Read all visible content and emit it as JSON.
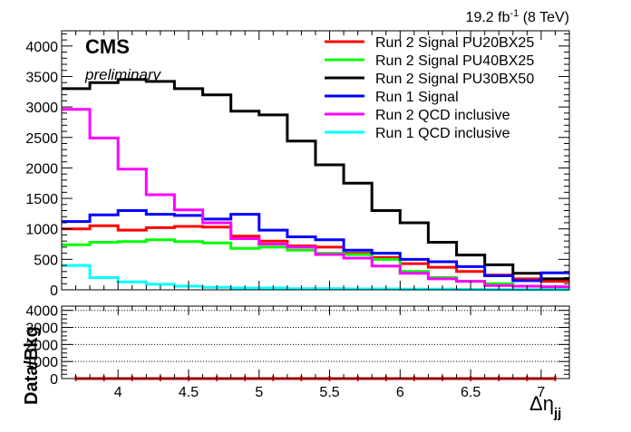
{
  "header": {
    "lumi_value": "19.2 fb",
    "lumi_exponent": "-1",
    "lumi_energy": "(8 TeV)"
  },
  "labels": {
    "experiment": "CMS",
    "status": "preliminary"
  },
  "chart_data": [
    {
      "type": "line",
      "style": "step-histogram",
      "panel": "main",
      "xlabel": "Δη",
      "xlabel_subscript": "jj",
      "ylabel": "",
      "x_edges": [
        3.6,
        3.8,
        4.0,
        4.2,
        4.4,
        4.6,
        4.8,
        5.0,
        5.2,
        5.4,
        5.6,
        5.8,
        6.0,
        6.2,
        6.4,
        6.6,
        6.8,
        7.0,
        7.2
      ],
      "xlim": [
        3.6,
        7.2
      ],
      "ylim": [
        0,
        4250
      ],
      "x_ticks": [
        4,
        4.5,
        5,
        5.5,
        6,
        6.5,
        7
      ],
      "x_tick_labels": [
        "4",
        "4.5",
        "5",
        "5.5",
        "6",
        "6.5",
        "7"
      ],
      "y_ticks": [
        0,
        500,
        1000,
        1500,
        2000,
        2500,
        3000,
        3500,
        4000
      ],
      "y_tick_labels": [
        "0",
        "500",
        "1000",
        "1500",
        "2000",
        "2500",
        "3000",
        "3500",
        "4000"
      ],
      "grid": false,
      "legend_position": "top-right",
      "series": [
        {
          "name": "Run 2 Signal PU20BX25",
          "color": "#ff0000",
          "values": [
            1000,
            1050,
            980,
            1020,
            1040,
            1030,
            880,
            800,
            720,
            700,
            600,
            530,
            430,
            370,
            300,
            240,
            180,
            140
          ]
        },
        {
          "name": "Run 2 Signal PU40BX25",
          "color": "#00ff00",
          "values": [
            740,
            780,
            790,
            820,
            790,
            770,
            680,
            700,
            650,
            600,
            580,
            500,
            300,
            200,
            140,
            100,
            60,
            40
          ]
        },
        {
          "name": "Run 2 Signal PU30BX50",
          "color": "#000000",
          "values": [
            3300,
            3400,
            3450,
            3420,
            3300,
            3200,
            2930,
            2870,
            2440,
            2050,
            1750,
            1300,
            1100,
            780,
            570,
            410,
            270,
            180
          ]
        },
        {
          "name": "Run 1 Signal",
          "color": "#0000ff",
          "values": [
            1120,
            1230,
            1300,
            1240,
            1220,
            1160,
            1240,
            980,
            870,
            820,
            650,
            600,
            500,
            460,
            380,
            230,
            150,
            280
          ]
        },
        {
          "name": "Run 2 QCD inclusive",
          "color": "#ff00ff",
          "values": [
            2960,
            2490,
            1980,
            1560,
            1310,
            1100,
            840,
            750,
            700,
            580,
            520,
            390,
            270,
            180,
            140,
            70,
            60,
            50
          ]
        },
        {
          "name": "Run 1 QCD inclusive",
          "color": "#00ffff",
          "values": [
            400,
            200,
            130,
            90,
            60,
            40,
            30,
            30,
            20,
            20,
            15,
            15,
            10,
            10,
            8,
            5,
            5,
            5
          ]
        }
      ]
    },
    {
      "type": "line",
      "panel": "ratio",
      "xlabel": "",
      "ylabel": "Data/Bkg",
      "xlim": [
        3.6,
        7.2
      ],
      "ylim": [
        0,
        4250
      ],
      "y_ticks": [
        0,
        1000,
        2000,
        3000,
        4000
      ],
      "y_tick_labels": [
        "0",
        "1000",
        "2000",
        "3000",
        "4000"
      ],
      "grid": true,
      "series": [
        {
          "color": "#ff0000",
          "x": [
            3.7,
            3.9,
            4.1,
            4.3,
            4.5,
            4.7,
            4.9,
            5.1,
            5.3,
            5.5,
            5.7,
            5.9,
            6.1,
            6.3,
            6.5,
            6.7,
            6.9,
            7.1
          ],
          "values": [
            1,
            1,
            1,
            1,
            1,
            1,
            1,
            1,
            1,
            1,
            1,
            1,
            1,
            1,
            1,
            1,
            1,
            1
          ]
        }
      ]
    }
  ]
}
